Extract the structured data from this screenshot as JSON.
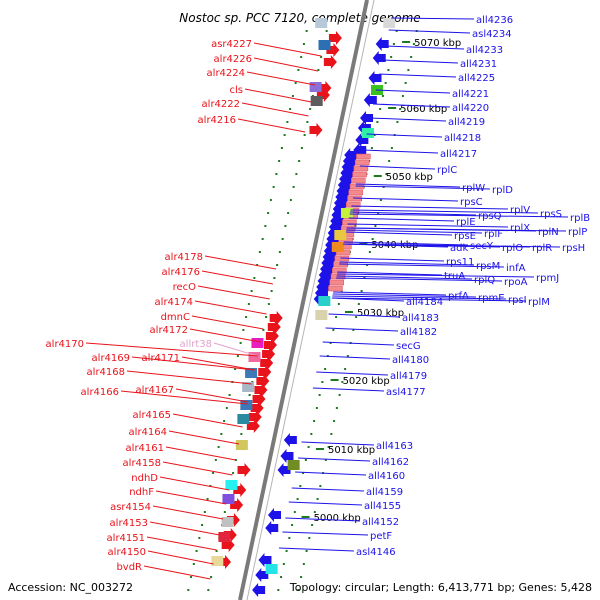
{
  "title": "Nostoc sp. PCC 7120, complete genome",
  "footer": {
    "accession": "Accession: NC_003272",
    "summary": "Topology: circular; Length: 6,413,771 bp; Genes: 5,428"
  },
  "colors": {
    "left_genes": "#e8131b",
    "right_genes": "#1d12e8",
    "rna_gene": "#e2a2cf",
    "axis": "#7a7a7a",
    "ticks": "#1e7a1e"
  },
  "ruler": [
    "5070 kbp",
    "5060 kbp",
    "5050 kbp",
    "5040 kbp",
    "5030 kbp",
    "5020 kbp",
    "5010 kbp",
    "5000 kbp"
  ],
  "left_labels": [
    "asr4227",
    "alr4226",
    "alr4224",
    "cls",
    "alr4222",
    "alr4216",
    "alr4178",
    "alr4176",
    "recO",
    "alr4174",
    "dmnC",
    "alr4172",
    "allrt38",
    "alr4170",
    "alr4169",
    "alr4171",
    "alr4168",
    "alr4166",
    "alr4167",
    "alr4165",
    "alr4164",
    "alr4161",
    "alr4158",
    "ndhD",
    "ndhF",
    "asr4154",
    "alr4153",
    "alr4151",
    "alr4150",
    "bvdR"
  ],
  "right_labels": [
    "all4236",
    "asl4234",
    "all4233",
    "all4231",
    "all4225",
    "all4221",
    "all4220",
    "all4219",
    "all4218",
    "all4217",
    "rplC",
    "rplW",
    "rplD",
    "rpsC",
    "rplV",
    "rpsS",
    "rplB",
    "rpsQ",
    "rplX",
    "rplP",
    "rplE",
    "rplF",
    "rplN",
    "rpsE",
    "rplR",
    "rpsH",
    "adk",
    "secY",
    "rplO",
    "rps11",
    "rpsM",
    "infA",
    "truA",
    "rplQ",
    "rpoA",
    "rpmJ",
    "prfA",
    "rpmE",
    "rpsI",
    "rplM",
    "all4184",
    "all4183",
    "all4182",
    "secG",
    "all4180",
    "all4179",
    "asl4177",
    "all4163",
    "all4162",
    "all4160",
    "all4159",
    "all4155",
    "all4152",
    "petF",
    "asl4146"
  ]
}
